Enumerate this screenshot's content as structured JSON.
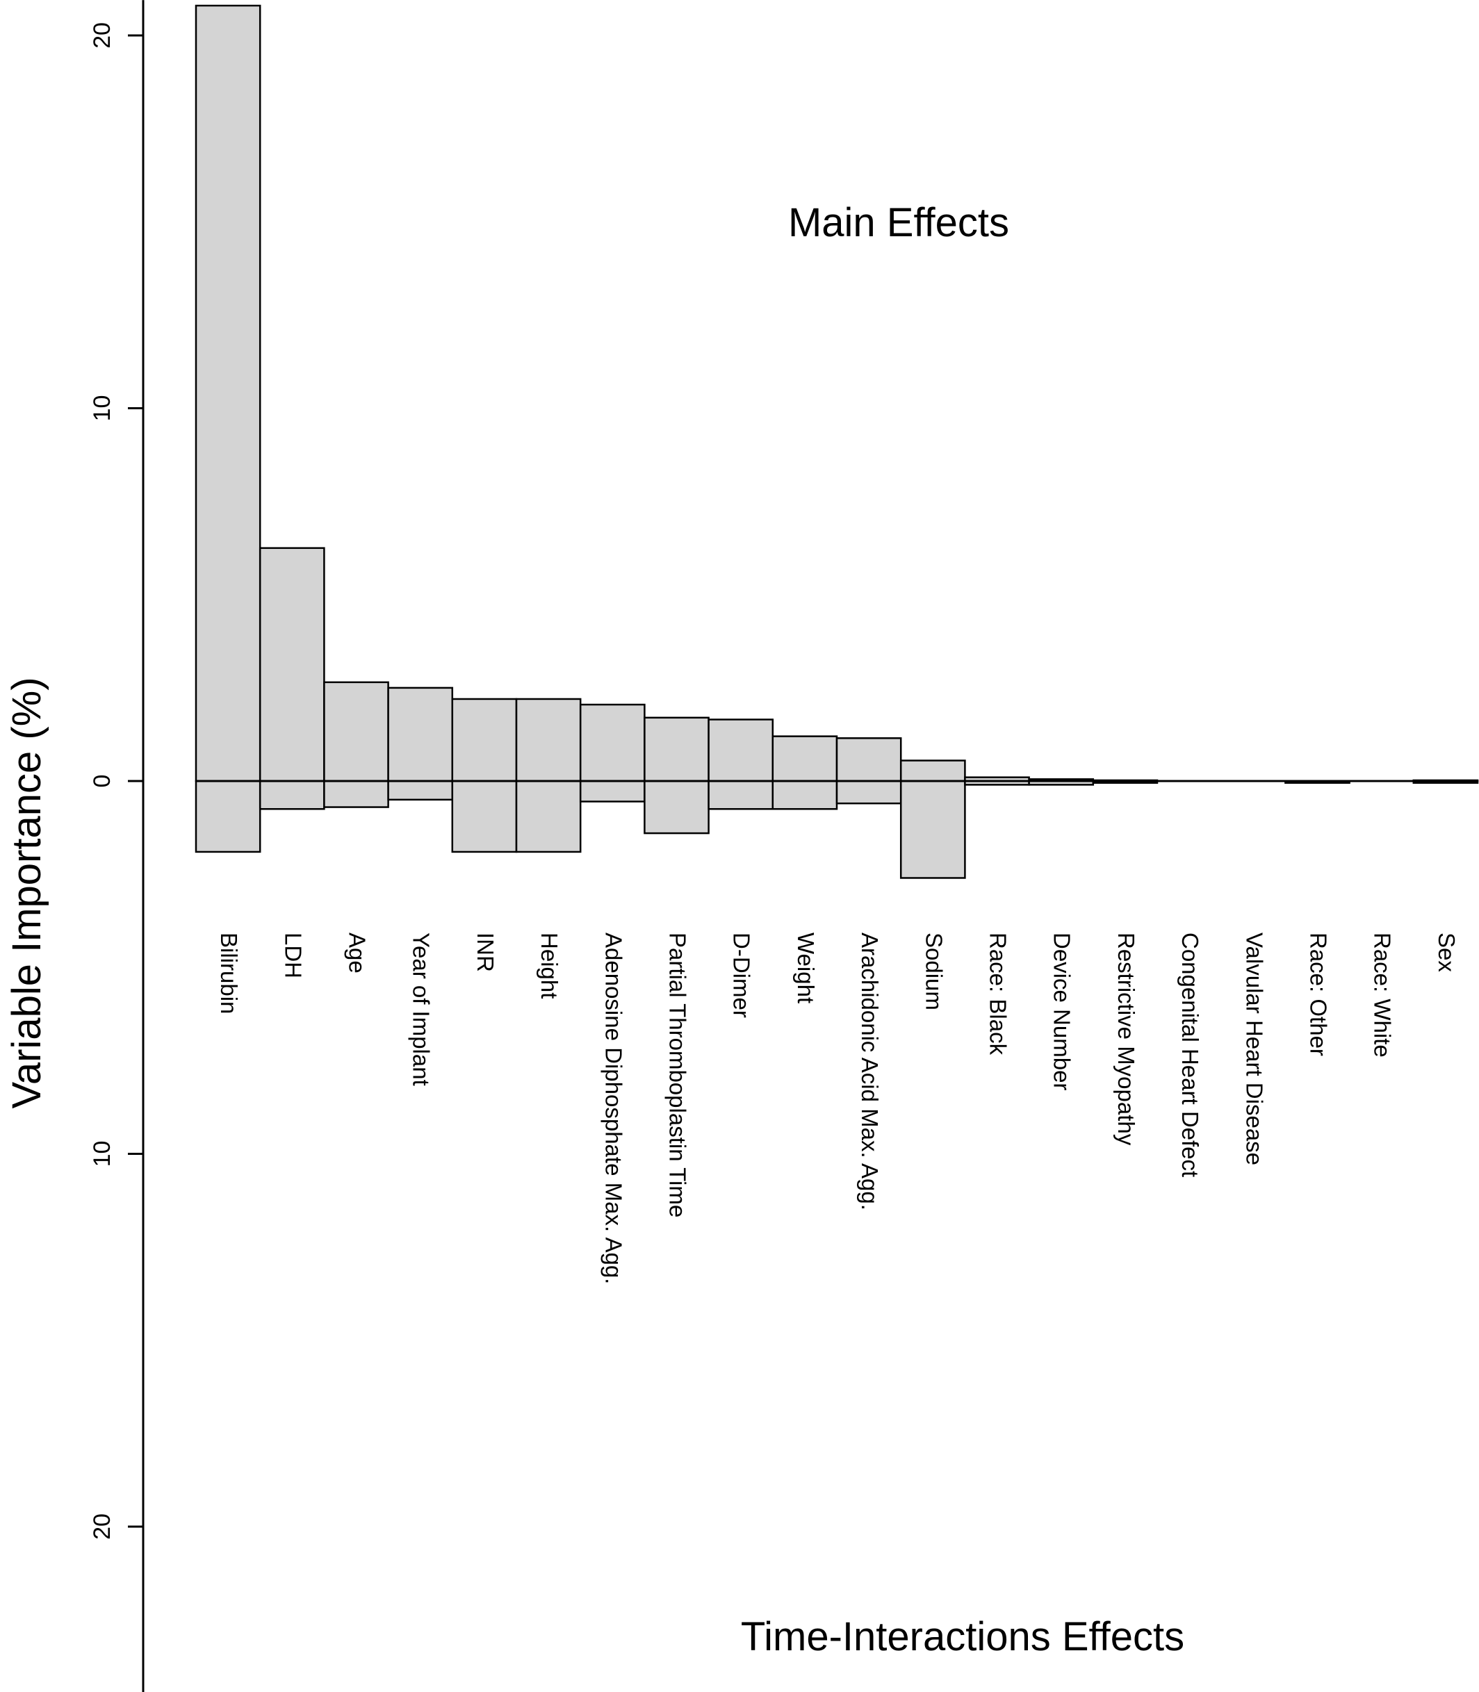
{
  "chart_data": {
    "type": "bar",
    "ylabel": "Variable Importance (%)",
    "annotations": {
      "top": "Main Effects",
      "bottom": "Time-Interactions Effects"
    },
    "ylim": [
      -24.5,
      20.8
    ],
    "yticks": [
      {
        "value": 20,
        "label": "20"
      },
      {
        "value": 10,
        "label": "10"
      },
      {
        "value": 0,
        "label": "0"
      },
      {
        "value": -10,
        "label": "10"
      },
      {
        "value": -20,
        "label": "20"
      }
    ],
    "categories": [
      "Bilirubin",
      "LDH",
      "Age",
      "Year of Implant",
      "INR",
      "Height",
      "Adenosine Diphosphate Max. Agg.",
      "Partial Thromboplastin Time",
      "D-Dimer",
      "Weight",
      "Arachidonic Acid Max. Agg.",
      "Sodium",
      "Race: Black",
      "Device Number",
      "Restrictive Myopathy",
      "Congenital Heart Defect",
      "Valvular Heart Disease",
      "Race: Other",
      "Race: White",
      "Sex"
    ],
    "series": [
      {
        "name": "Main Effects",
        "values": [
          20.8,
          6.25,
          2.65,
          2.5,
          2.2,
          2.2,
          2.05,
          1.7,
          1.65,
          1.2,
          1.15,
          0.55,
          0.1,
          0.05,
          0.02,
          0.0,
          0.0,
          0.0,
          0.0,
          0.02
        ]
      },
      {
        "name": "Time-Interactions Effects",
        "values": [
          -1.9,
          -0.75,
          -0.7,
          -0.5,
          -1.9,
          -1.9,
          -0.55,
          -1.4,
          -0.75,
          -0.75,
          -0.6,
          -2.6,
          -0.1,
          -0.1,
          -0.05,
          0.0,
          0.0,
          -0.05,
          0.0,
          -0.05
        ]
      }
    ]
  }
}
